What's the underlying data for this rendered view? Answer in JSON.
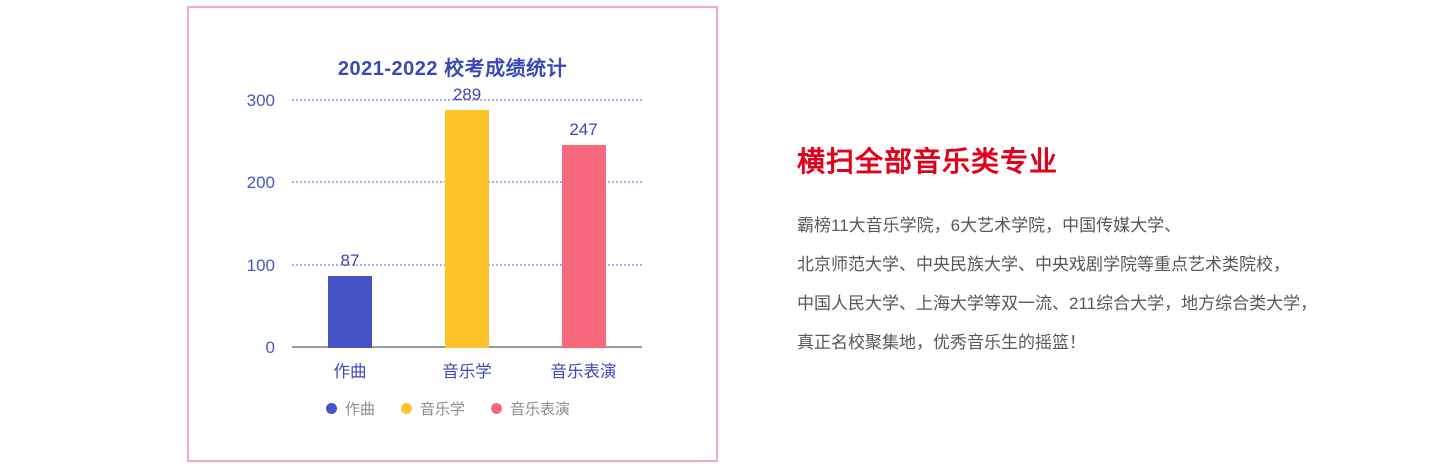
{
  "chart_data": {
    "type": "bar",
    "title": "2021-2022 校考成绩统计",
    "categories": [
      "作曲",
      "音乐学",
      "音乐表演"
    ],
    "values": [
      87,
      289,
      247
    ],
    "bar_colors": [
      "#4553c4",
      "#fcc32a",
      "#f9697e"
    ],
    "y_ticks": [
      0,
      100,
      200,
      300
    ],
    "ylim": [
      0,
      300
    ],
    "xlabel": "",
    "ylabel": "",
    "grid": "horizontal dotted",
    "legend_position": "bottom",
    "legend": [
      "作曲",
      "音乐学",
      "音乐表演"
    ],
    "colors": {
      "title_text": "#3b49b6",
      "tick_text": "#4756c5",
      "value_label_text": "#3b49b6",
      "gridline": "#aab1ea",
      "axis_line": "#9b9b9b",
      "legend_text": "#8c8c8c",
      "card_border": "#f8aabc"
    }
  },
  "info": {
    "heading": "横扫全部音乐类专业",
    "heading_color": "#e3001b",
    "body_color": "#595757",
    "lines": [
      "霸榜11大音乐学院，6大艺术学院，中国传媒大学、",
      "北京师范大学、中央民族大学、中央戏剧学院等重点艺术类院校，",
      "中国人民大学、上海大学等双一流、211综合大学，地方综合类大学，",
      "真正名校聚集地，优秀音乐生的摇篮！"
    ]
  }
}
